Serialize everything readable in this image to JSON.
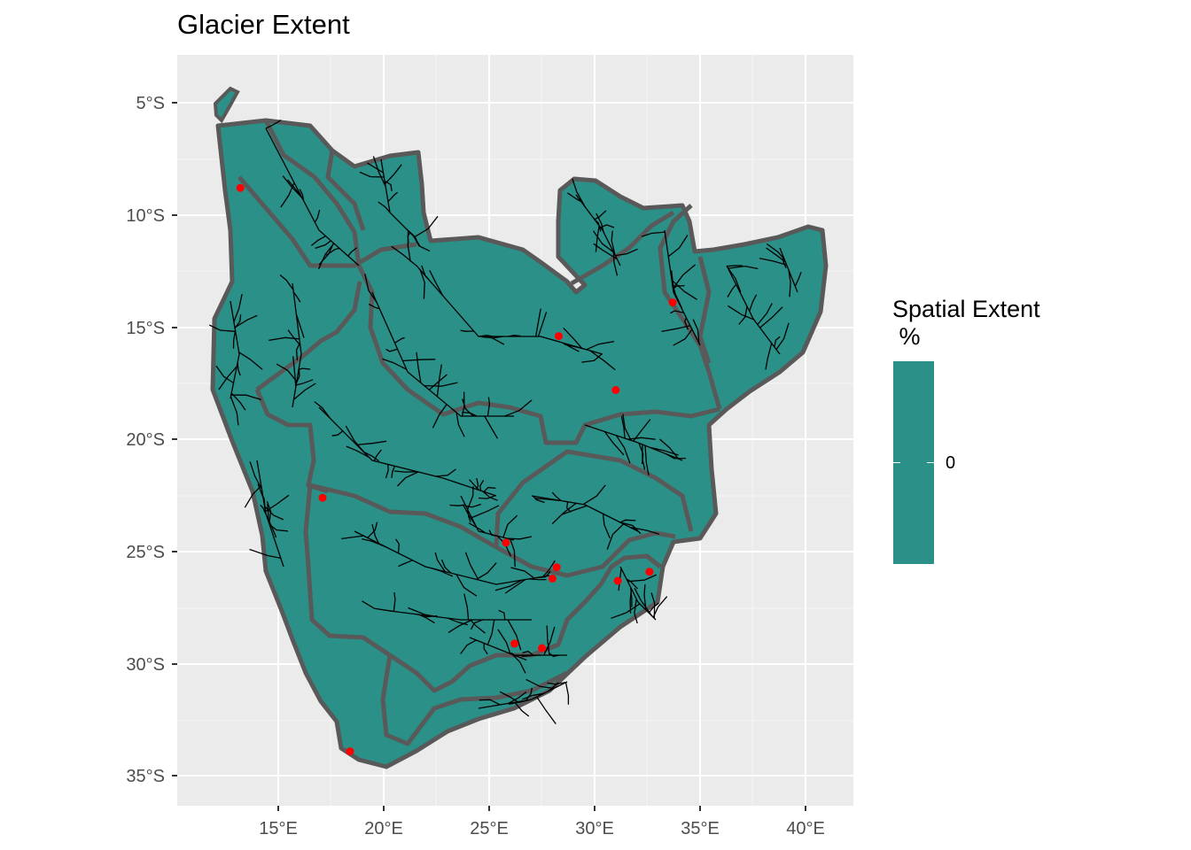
{
  "title": "Glacier Extent",
  "x_ticks": [
    "15°E",
    "20°E",
    "25°E",
    "30°E",
    "35°E",
    "40°E"
  ],
  "y_ticks": [
    "5°S",
    "10°S",
    "15°S",
    "20°S",
    "25°S",
    "30°S",
    "35°S"
  ],
  "legend": {
    "title_line1": "Spatial Extent",
    "title_line2": " %",
    "label": "0",
    "fill_color": "#2a9088"
  },
  "colors": {
    "panel": "#ebebeb",
    "grid": "#ffffff",
    "region_fill": "#2a9088",
    "region_border": "#595959",
    "river": "#000000",
    "point": "#ff0000"
  },
  "points": [
    {
      "lon": 13.2,
      "lat": -8.8
    },
    {
      "lon": 17.1,
      "lat": -22.6
    },
    {
      "lon": 18.4,
      "lat": -33.9
    },
    {
      "lon": 33.7,
      "lat": -13.9
    },
    {
      "lon": 28.3,
      "lat": -15.4
    },
    {
      "lon": 31.0,
      "lat": -17.8
    },
    {
      "lon": 25.8,
      "lat": -24.6
    },
    {
      "lon": 28.2,
      "lat": -25.7
    },
    {
      "lon": 28.0,
      "lat": -26.2
    },
    {
      "lon": 31.1,
      "lat": -26.3
    },
    {
      "lon": 32.6,
      "lat": -25.9
    },
    {
      "lon": 26.2,
      "lat": -29.1
    },
    {
      "lon": 27.5,
      "lat": -29.3
    }
  ]
}
